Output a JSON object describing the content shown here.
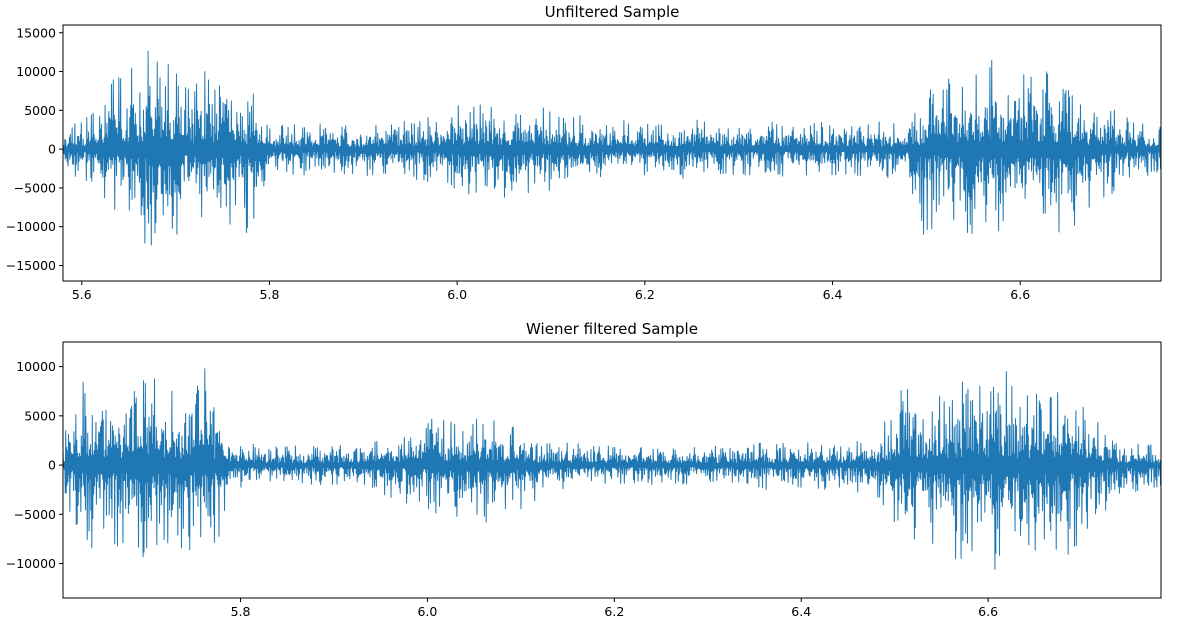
{
  "chart_data": [
    {
      "type": "line",
      "title": "Unfiltered Sample",
      "xlabel": "",
      "ylabel": "",
      "xlim": [
        5.58,
        6.75
      ],
      "ylim": [
        -17000,
        16000
      ],
      "xticks": [
        5.6,
        5.8,
        6.0,
        6.2,
        6.4,
        6.6
      ],
      "xtick_labels": [
        "5.6",
        "5.8",
        "6.0",
        "6.2",
        "6.4",
        "6.6"
      ],
      "yticks": [
        -15000,
        -10000,
        -5000,
        0,
        5000,
        10000,
        15000
      ],
      "ytick_labels": [
        "−15000",
        "−10000",
        "−5000",
        "0",
        "5000",
        "10000",
        "15000"
      ],
      "grid": false,
      "color": "#1f77b4",
      "series": [
        {
          "x": [
            5.58,
            5.6,
            5.62,
            5.625,
            5.635,
            5.645,
            5.655,
            5.665,
            5.67,
            5.675,
            5.685,
            5.69,
            5.695,
            5.7,
            5.705,
            5.71,
            5.72,
            5.73,
            5.74,
            5.75,
            5.76,
            5.77,
            5.78,
            5.785,
            5.79,
            5.82,
            5.86,
            5.9,
            5.94,
            5.98,
            6.0,
            6.02,
            6.04,
            6.06,
            6.08,
            6.1,
            6.12,
            6.16,
            6.2,
            6.24,
            6.28,
            6.32,
            6.36,
            6.4,
            6.44,
            6.48,
            6.5,
            6.51,
            6.52,
            6.53,
            6.545,
            6.56,
            6.565,
            6.575,
            6.59,
            6.6,
            6.605,
            6.62,
            6.63,
            6.64,
            6.66,
            6.68,
            6.7,
            6.72,
            6.75
          ],
          "envelope": [
            3000,
            3500,
            6000,
            8000,
            12000,
            9000,
            11000,
            10000,
            14000,
            11000,
            12000,
            11000,
            13500,
            9000,
            13500,
            10000,
            8000,
            12000,
            8000,
            9500,
            11000,
            8000,
            7000,
            11000,
            4000,
            3500,
            3500,
            3000,
            3500,
            4500,
            6500,
            6000,
            5500,
            5500,
            6000,
            6000,
            4500,
            4000,
            3500,
            4000,
            3500,
            3500,
            3500,
            3500,
            3500,
            3500,
            6500,
            12500,
            10000,
            8000,
            9500,
            10000,
            13500,
            11000,
            10500,
            9000,
            13500,
            9000,
            11000,
            9000,
            7000,
            6000,
            5500,
            3500,
            3000
          ],
          "envelope_neg": [
            -3000,
            -4000,
            -6000,
            -8000,
            -9000,
            -11000,
            -9000,
            -12000,
            -13000,
            -14000,
            -11000,
            -12000,
            -10000,
            -12000,
            -9000,
            -9000,
            -8000,
            -12000,
            -10000,
            -13000,
            -9000,
            -8000,
            -13500,
            -9000,
            -5000,
            -3500,
            -3500,
            -3500,
            -3500,
            -5000,
            -6500,
            -6000,
            -7000,
            -8500,
            -6000,
            -5500,
            -4500,
            -3500,
            -3500,
            -4000,
            -3500,
            -3500,
            -3500,
            -3500,
            -3500,
            -4000,
            -13000,
            -8500,
            -12000,
            -10000,
            -11000,
            -13000,
            -9500,
            -12000,
            -14000,
            -10000,
            -9000,
            -12000,
            -13000,
            -11000,
            -10000,
            -8000,
            -6000,
            -4000,
            -3000
          ]
        }
      ]
    },
    {
      "type": "line",
      "title": "Wiener filtered Sample",
      "xlabel": "",
      "ylabel": "",
      "xlim": [
        5.61,
        6.785
      ],
      "ylim": [
        -13500,
        12500
      ],
      "xticks": [
        5.8,
        6.0,
        6.2,
        6.4,
        6.6
      ],
      "xtick_labels": [
        "5.8",
        "6.0",
        "6.2",
        "6.4",
        "6.6"
      ],
      "yticks": [
        -10000,
        -5000,
        0,
        5000,
        10000
      ],
      "ytick_labels": [
        "−10000",
        "−5000",
        "0",
        "5000",
        "10000"
      ],
      "grid": false,
      "color": "#1f77b4",
      "series": [
        {
          "x": [
            5.61,
            5.63,
            5.65,
            5.66,
            5.67,
            5.68,
            5.69,
            5.7,
            5.71,
            5.72,
            5.73,
            5.74,
            5.75,
            5.76,
            5.77,
            5.78,
            5.79,
            5.82,
            5.86,
            5.9,
            5.94,
            5.98,
            6.0,
            6.02,
            6.04,
            6.06,
            6.08,
            6.1,
            6.12,
            6.16,
            6.2,
            6.24,
            6.28,
            6.32,
            6.36,
            6.4,
            6.44,
            6.48,
            6.5,
            6.51,
            6.52,
            6.53,
            6.55,
            6.57,
            6.58,
            6.6,
            6.61,
            6.62,
            6.63,
            6.65,
            6.67,
            6.69,
            6.71,
            6.74,
            6.785
          ],
          "envelope": [
            2500,
            9500,
            9000,
            10000,
            8000,
            9000,
            10000,
            8500,
            10500,
            7000,
            9000,
            7000,
            6500,
            10500,
            7000,
            6000,
            2500,
            2000,
            2000,
            2000,
            2500,
            4000,
            5000,
            4800,
            4500,
            5200,
            4000,
            4000,
            2500,
            2200,
            2000,
            2000,
            2000,
            2000,
            2500,
            2500,
            2500,
            3000,
            6000,
            10000,
            7000,
            6500,
            8000,
            9000,
            10500,
            8500,
            9000,
            10000,
            7500,
            8000,
            9000,
            7000,
            6000,
            2500,
            2000
          ],
          "envelope_neg": [
            -2500,
            -9000,
            -9500,
            -8000,
            -10000,
            -9000,
            -8500,
            -10000,
            -8500,
            -9000,
            -8000,
            -10500,
            -7500,
            -8000,
            -10500,
            -6000,
            -2500,
            -2000,
            -2000,
            -2000,
            -2500,
            -4000,
            -5000,
            -5500,
            -5200,
            -6000,
            -4500,
            -5500,
            -3000,
            -2200,
            -2000,
            -2000,
            -2000,
            -2000,
            -2500,
            -2500,
            -2500,
            -3000,
            -6000,
            -10500,
            -7500,
            -8000,
            -9000,
            -10000,
            -9000,
            -9500,
            -12000,
            -9000,
            -8500,
            -9000,
            -10500,
            -9500,
            -7000,
            -3000,
            -2500
          ]
        }
      ]
    }
  ]
}
